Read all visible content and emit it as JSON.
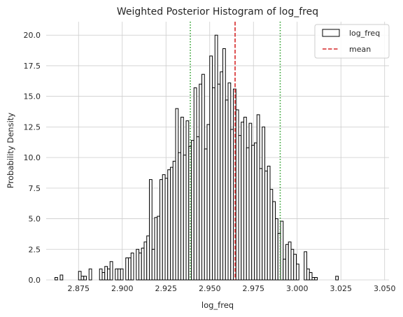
{
  "chart_data": {
    "type": "histogram",
    "title": "Weighted Posterior Histogram of log_freq",
    "xlabel": "log_freq",
    "ylabel": "Probability Density",
    "xlim": [
      2.8565,
      3.0525
    ],
    "ylim": [
      0,
      21.1
    ],
    "xticks": [
      2.875,
      2.9,
      2.925,
      2.95,
      2.975,
      3.0,
      3.025,
      3.05
    ],
    "xtick_labels": [
      "2.875",
      "2.900",
      "2.925",
      "2.950",
      "2.975",
      "3.000",
      "3.025",
      "3.050"
    ],
    "yticks": [
      0,
      2.5,
      5,
      7.5,
      10,
      12.5,
      15,
      17.5,
      20
    ],
    "ytick_labels": [
      "0.0",
      "2.5",
      "5.0",
      "7.5",
      "10.0",
      "12.5",
      "15.0",
      "17.5",
      "20.0"
    ],
    "grid": true,
    "legend_position": "top-right",
    "histogram": {
      "name": "log_freq",
      "bin_start": 2.8615,
      "bin_width": 0.0015,
      "values": [
        0.2,
        0.0,
        0.4,
        0.0,
        0.0,
        0.0,
        0.0,
        0.0,
        0.0,
        0.7,
        0.3,
        0.3,
        0.0,
        0.9,
        0.0,
        0.0,
        0.0,
        0.9,
        0.6,
        1.1,
        0.9,
        1.5,
        0.0,
        0.9,
        0.9,
        0.9,
        0.0,
        1.8,
        1.8,
        2.2,
        0.0,
        2.5,
        2.2,
        2.6,
        3.1,
        3.6,
        8.2,
        2.5,
        5.1,
        5.2,
        8.2,
        8.6,
        8.3,
        9.0,
        9.2,
        9.7,
        14.0,
        10.4,
        13.3,
        10.2,
        13.0,
        10.9,
        11.4,
        15.7,
        11.7,
        16.0,
        16.8,
        10.7,
        12.7,
        18.3,
        15.7,
        20.0,
        16.0,
        17.0,
        18.9,
        14.7,
        16.1,
        12.3,
        15.6,
        13.9,
        11.8,
        12.9,
        13.3,
        10.8,
        12.8,
        11.0,
        11.2,
        13.5,
        9.1,
        12.5,
        8.9,
        9.3,
        7.4,
        6.4,
        5.0,
        3.8,
        4.8,
        1.7,
        2.9,
        3.1,
        2.5,
        2.1,
        1.3,
        0.0,
        0.0,
        2.3,
        0.9,
        0.6,
        0.2,
        0.2,
        0.0,
        0.0,
        0.0,
        0.0,
        0.0,
        0.0,
        0.0,
        0.3
      ]
    },
    "lines": [
      {
        "name": "mean",
        "x": 2.9645,
        "color": "#d62728",
        "style": "dashed"
      },
      {
        "name": "lower",
        "x": 2.9389,
        "color": "#2ca02c",
        "style": "dotted"
      },
      {
        "name": "upper",
        "x": 2.9903,
        "color": "#2ca02c",
        "style": "dotted"
      }
    ],
    "legend": [
      {
        "label": "log_freq",
        "kind": "patch"
      },
      {
        "label": "mean",
        "kind": "line",
        "color": "#d62728"
      }
    ]
  }
}
